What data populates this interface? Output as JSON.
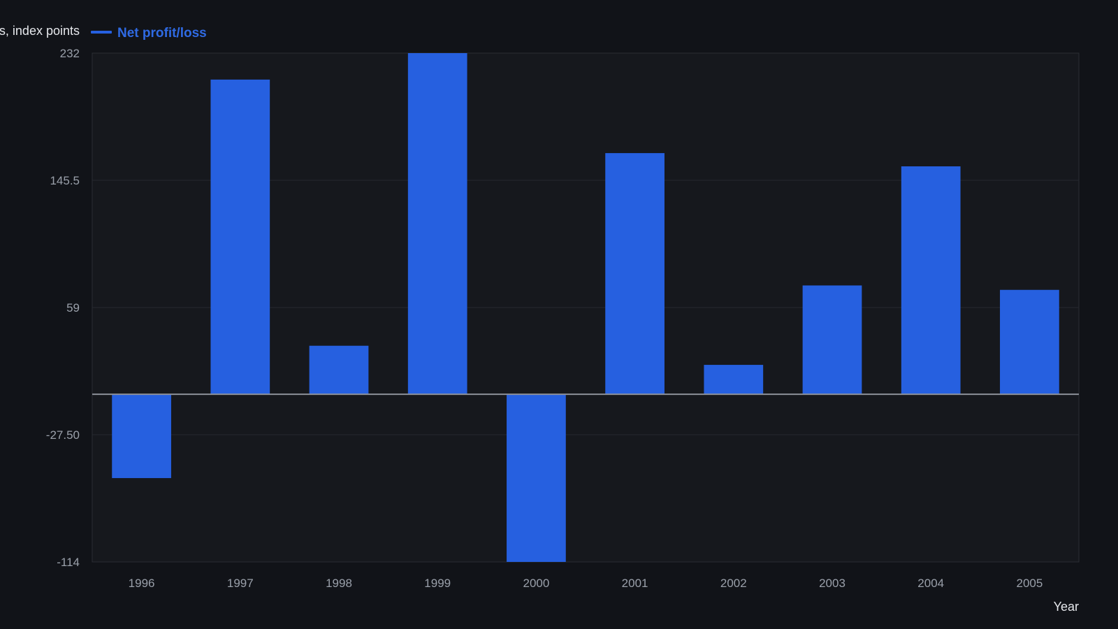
{
  "chart_data": {
    "type": "bar",
    "categories": [
      "1996",
      "1997",
      "1998",
      "1999",
      "2000",
      "2001",
      "2002",
      "2003",
      "2004",
      "2005"
    ],
    "series": [
      {
        "name": "Net profit/loss",
        "color": "#2660e0",
        "values": [
          -57,
          214,
          33,
          232,
          -114,
          164,
          20,
          74,
          155,
          71
        ]
      }
    ],
    "xlabel": "Year",
    "ylabel": "s, index points",
    "ylim": [
      -114,
      232
    ],
    "yticks": [
      "232",
      "145.5",
      "59",
      "-27.50",
      "-114"
    ],
    "ytick_values": [
      232,
      145.5,
      59,
      -27.5,
      -114
    ],
    "grid": true,
    "legend": "top-left",
    "colors": {
      "background": "#111318",
      "plot_background": "#16181d",
      "bar": "#2660e0",
      "zero_line": "#8c9099",
      "grid": "#262930",
      "text_muted": "#9aa0aa",
      "text_strong": "#e6e8ec",
      "legend_text": "#2f6ae3"
    }
  }
}
